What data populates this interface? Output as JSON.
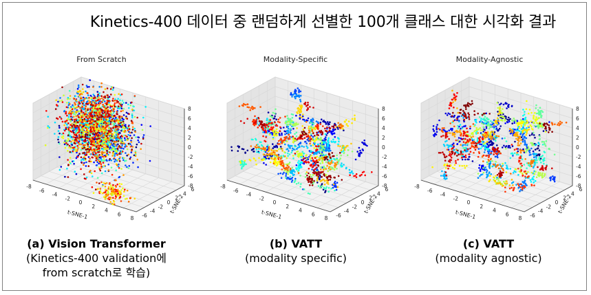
{
  "title": "Kinetics-400 데이터 중 랜덤하게 선별한 100개 클래스 대한 시각화 결과",
  "chart_data": [
    {
      "type": "scatter",
      "title": "From Scratch",
      "xlabel": "t-SNE-1",
      "ylabel": "t-SNE-2",
      "zlabel": "t-SNE-3",
      "xlim": [
        -8,
        8
      ],
      "ylim": [
        -6,
        6
      ],
      "zlim": [
        -8,
        8
      ],
      "x_ticks": [
        "-8",
        "-6",
        "-4",
        "-2",
        "0",
        "2",
        "4",
        "6",
        "8"
      ],
      "y_ticks": [
        "-6",
        "-4",
        "-2",
        "0",
        "2",
        "4",
        "6"
      ],
      "z_ticks": [
        "8",
        "6",
        "4",
        "2",
        "0",
        "-2",
        "-4",
        "-6",
        "-8"
      ],
      "n_classes": 100,
      "distribution": "dense",
      "caption": {
        "title": "(a) Vision Transformer",
        "line1": "(Kinetics-400 validation에",
        "line2": "from scratch로 학습)"
      }
    },
    {
      "type": "scatter",
      "title": "Modality-Specific",
      "xlabel": "t-SNE-1",
      "ylabel": "t-SNE-2",
      "zlabel": "t-SNE-3",
      "xlim": [
        -8,
        8
      ],
      "ylim": [
        -6,
        6
      ],
      "zlim": [
        -8,
        8
      ],
      "x_ticks": [
        "-8",
        "-6",
        "-4",
        "-2",
        "0",
        "2",
        "4",
        "6",
        "8"
      ],
      "y_ticks": [
        "-6",
        "-4",
        "-2",
        "0",
        "2",
        "4",
        "6"
      ],
      "z_ticks": [
        "8",
        "6",
        "4",
        "2",
        "0",
        "-2",
        "-4",
        "-6",
        "-8"
      ],
      "n_classes": 100,
      "distribution": "clustered",
      "caption": {
        "title": "(b) VATT",
        "line1": "(modality specific)",
        "line2": ""
      }
    },
    {
      "type": "scatter",
      "title": "Modality-Agnostic",
      "xlabel": "t-SNE-1",
      "ylabel": "t-SNE-2",
      "zlabel": "t-SNE-3",
      "xlim": [
        -8,
        8
      ],
      "ylim": [
        -6,
        6
      ],
      "zlim": [
        -8,
        8
      ],
      "x_ticks": [
        "-8",
        "-6",
        "-4",
        "-2",
        "0",
        "2",
        "4",
        "6",
        "8"
      ],
      "y_ticks": [
        "-6",
        "-4",
        "-2",
        "0",
        "2",
        "4",
        "6"
      ],
      "z_ticks": [
        "8",
        "6",
        "4",
        "2",
        "0",
        "-2",
        "-4",
        "-6",
        "-8"
      ],
      "n_classes": 100,
      "distribution": "clustered",
      "caption": {
        "title": "(c) VATT",
        "line1": "(modality agnostic)",
        "line2": ""
      }
    }
  ]
}
